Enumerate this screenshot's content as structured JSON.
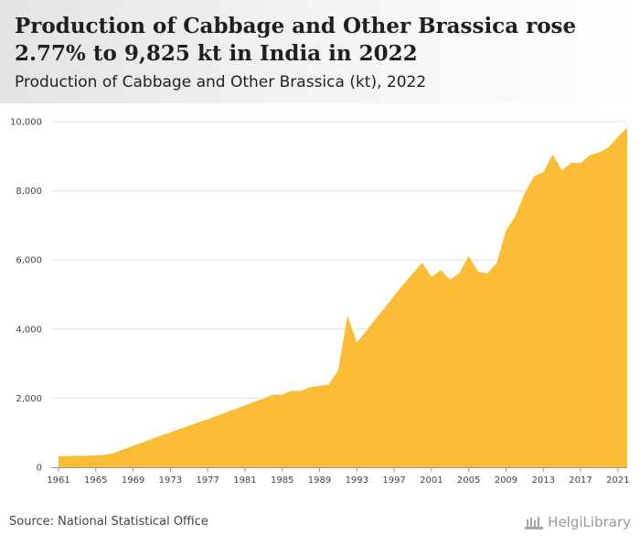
{
  "header": {
    "title": "Production of Cabbage and Other Brassica rose 2.77% to 9,825 kt in India in 2022",
    "subtitle": "Production of Cabbage and Other Brassica (kt), 2022"
  },
  "footer": {
    "source": "Source: National Statistical Office",
    "logo_text": "HelgiLibrary"
  },
  "colors": {
    "area": "#fbbd35",
    "grid": "#e4e4e4",
    "axis": "#999999"
  },
  "chart_data": {
    "type": "area",
    "title": "Production of Cabbage and Other Brassica rose 2.77% to 9,825 kt in India in 2022",
    "subtitle": "Production of Cabbage and Other Brassica (kt), 2022",
    "xlabel": "",
    "ylabel": "",
    "ylim": [
      0,
      10000
    ],
    "xlim": [
      1961,
      2022
    ],
    "grid": true,
    "y_ticks": [
      0,
      2000,
      4000,
      6000,
      8000,
      10000
    ],
    "y_tick_labels": [
      "0",
      "2,000",
      "4,000",
      "6,000",
      "8,000",
      "10,000"
    ],
    "x_ticks": [
      1961,
      1965,
      1969,
      1973,
      1977,
      1981,
      1985,
      1989,
      1993,
      1997,
      2001,
      2005,
      2009,
      2013,
      2017,
      2021
    ],
    "x": [
      1961,
      1962,
      1963,
      1964,
      1965,
      1966,
      1967,
      1968,
      1969,
      1970,
      1971,
      1972,
      1973,
      1974,
      1975,
      1976,
      1977,
      1978,
      1979,
      1980,
      1981,
      1982,
      1983,
      1984,
      1985,
      1986,
      1987,
      1988,
      1989,
      1990,
      1991,
      1992,
      1993,
      1994,
      1995,
      1996,
      1997,
      1998,
      1999,
      2000,
      2001,
      2002,
      2003,
      2004,
      2005,
      2006,
      2007,
      2008,
      2009,
      2010,
      2011,
      2012,
      2013,
      2014,
      2015,
      2016,
      2017,
      2018,
      2019,
      2020,
      2021,
      2022
    ],
    "series": [
      {
        "values": [
          320,
          325,
          330,
          335,
          345,
          360,
          420,
          520,
          620,
          720,
          820,
          920,
          1010,
          1110,
          1200,
          1300,
          1390,
          1490,
          1590,
          1690,
          1790,
          1890,
          1990,
          2100,
          2100,
          2210,
          2210,
          2320,
          2360,
          2390,
          2810,
          4390,
          3610,
          3940,
          4290,
          4620,
          4960,
          5290,
          5610,
          5920,
          5510,
          5700,
          5430,
          5620,
          6110,
          5660,
          5610,
          5910,
          6850,
          7270,
          7930,
          8420,
          8530,
          9050,
          8590,
          8810,
          8800,
          9030,
          9110,
          9260,
          9560,
          9825
        ]
      }
    ]
  }
}
